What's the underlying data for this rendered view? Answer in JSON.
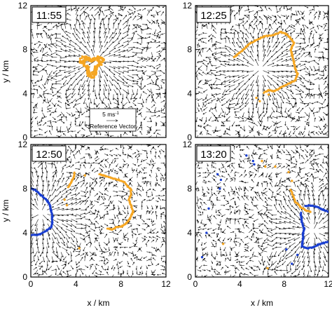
{
  "chart_data": {
    "type": "vector-field",
    "xlabel": "x / km",
    "ylabel": "y / km",
    "xlim": [
      0,
      12
    ],
    "ylim": [
      0,
      12
    ],
    "xticks": [
      0,
      4,
      8,
      12
    ],
    "yticks": [
      0,
      4,
      8,
      12
    ],
    "reference_vector": {
      "label": "5 ms",
      "superscript": "-1",
      "caption": "Reference Vector",
      "magnitude_ms": 5
    },
    "colors": {
      "outflow_boundary": "#f5a623",
      "cold_pool": "#1a3fd0",
      "vectors": "#000000"
    },
    "panels": [
      {
        "time": "11:55",
        "divergence_center": [
          5.8,
          7.0
        ],
        "orange_blob": {
          "center": [
            5.4,
            6.6
          ],
          "radius_km": 1.1
        },
        "orange_ring": [],
        "blue_boundary": []
      },
      {
        "time": "12:25",
        "divergence_center": [
          5.8,
          6.2
        ],
        "orange_ring": [
          [
            3.5,
            7.3
          ],
          [
            4.2,
            7.9
          ],
          [
            5.0,
            8.6
          ],
          [
            5.6,
            8.9
          ],
          [
            6.2,
            9.2
          ],
          [
            7.0,
            9.3
          ],
          [
            7.7,
            9.6
          ],
          [
            8.2,
            9.4
          ],
          [
            8.6,
            9.0
          ],
          [
            8.9,
            8.6
          ],
          [
            8.6,
            8.0
          ],
          [
            8.8,
            7.2
          ],
          [
            9.0,
            6.3
          ],
          [
            9.2,
            5.8
          ],
          [
            9.0,
            5.2
          ],
          [
            8.4,
            4.9
          ],
          [
            8.0,
            4.7
          ],
          [
            7.6,
            4.5
          ],
          [
            7.1,
            4.2
          ],
          [
            6.6,
            4.3
          ],
          [
            6.2,
            4.1
          ]
        ],
        "orange_scatter": [
          [
            5.5,
            3.6
          ],
          [
            5.8,
            3.3
          ],
          [
            6.6,
            3.9
          ]
        ],
        "blue_boundary": []
      },
      {
        "time": "12:50",
        "divergence_center": [
          0.9,
          5.8
        ],
        "orange_ring": [
          [
            3.3,
            8.1
          ],
          [
            3.6,
            8.6
          ],
          [
            3.8,
            9.0
          ],
          [
            3.9,
            9.5
          ],
          [
            6.1,
            9.3
          ],
          [
            7.0,
            9.0
          ],
          [
            7.8,
            8.8
          ],
          [
            8.3,
            8.6
          ],
          [
            8.6,
            8.2
          ],
          [
            8.9,
            7.9
          ],
          [
            8.9,
            7.4
          ],
          [
            8.7,
            7.0
          ],
          [
            9.1,
            5.9
          ],
          [
            8.8,
            5.3
          ],
          [
            8.5,
            4.9
          ],
          [
            8.1,
            4.6
          ],
          [
            7.6,
            4.5
          ],
          [
            7.2,
            4.3
          ],
          [
            6.8,
            4.4
          ]
        ],
        "orange_scatter": [
          [
            4.8,
            9.2
          ],
          [
            3.0,
            7.0
          ],
          [
            3.2,
            6.5
          ],
          [
            4.3,
            2.6
          ]
        ],
        "blue_boundary": [
          [
            0.0,
            8.0
          ],
          [
            0.4,
            7.9
          ],
          [
            0.9,
            7.4
          ],
          [
            1.4,
            7.0
          ],
          [
            1.7,
            6.5
          ],
          [
            1.8,
            6.0
          ],
          [
            1.9,
            5.5
          ],
          [
            1.9,
            4.9
          ],
          [
            1.8,
            4.5
          ],
          [
            1.4,
            4.2
          ],
          [
            0.9,
            3.9
          ],
          [
            0.4,
            3.8
          ],
          [
            0.0,
            3.8
          ]
        ]
      },
      {
        "time": "13:20",
        "divergence_center": [
          10.6,
          4.2
        ],
        "orange_ring": [
          [
            8.6,
            7.9
          ],
          [
            9.0,
            6.8
          ],
          [
            9.5,
            6.3
          ],
          [
            10.0,
            6.0
          ],
          [
            10.4,
            5.9
          ]
        ],
        "orange_scatter": [
          [
            6.0,
            10.5
          ],
          [
            6.3,
            10.0
          ],
          [
            7.2,
            10.0
          ],
          [
            8.4,
            9.5
          ],
          [
            8.7,
            8.7
          ],
          [
            2.5,
            3.0
          ],
          [
            6.5,
            0.8
          ]
        ],
        "blue_boundary": [
          [
            9.9,
            6.4
          ],
          [
            10.2,
            6.5
          ],
          [
            10.8,
            6.4
          ],
          [
            11.5,
            6.1
          ],
          [
            12.0,
            5.9
          ],
          [
            9.5,
            5.8
          ],
          [
            9.6,
            5.0
          ],
          [
            9.8,
            4.4
          ],
          [
            9.7,
            3.9
          ],
          [
            9.7,
            3.5
          ],
          [
            9.6,
            2.8
          ],
          [
            10.1,
            2.6
          ],
          [
            10.6,
            2.7
          ],
          [
            11.0,
            2.9
          ],
          [
            11.6,
            3.1
          ],
          [
            12.0,
            3.2
          ]
        ],
        "blue_scatter": [
          [
            2.0,
            9.3
          ],
          [
            2.3,
            8.8
          ],
          [
            2.2,
            8.0
          ],
          [
            4.6,
            11.0
          ],
          [
            5.2,
            10.5
          ],
          [
            5.3,
            10.2
          ],
          [
            1.2,
            6.2
          ],
          [
            1.0,
            4.0
          ],
          [
            0.6,
            1.8
          ],
          [
            8.2,
            2.5
          ],
          [
            8.7,
            1.2
          ],
          [
            9.2,
            2.0
          ]
        ]
      }
    ]
  }
}
